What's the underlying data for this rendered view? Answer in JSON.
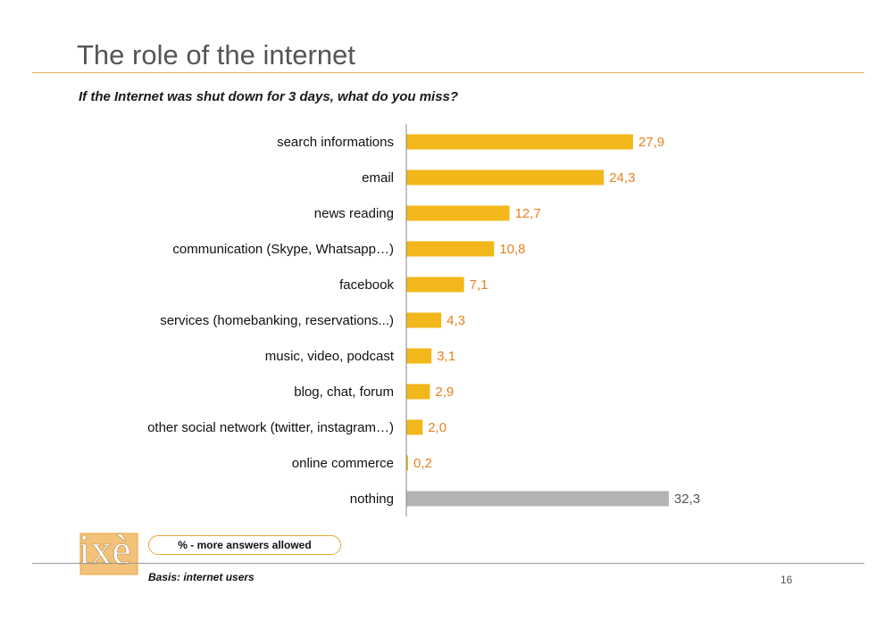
{
  "page": {
    "title": "The role of the internet",
    "subtitle": "If the Internet was shut down for 3 days, what do you miss?",
    "note": "% - more answers allowed",
    "basis": "Basis: internet users",
    "page_number": "16",
    "logo_text": "ixè"
  },
  "colors": {
    "highlight_bar": "#f2b71a",
    "baseline_bar": "#b3b3b3",
    "highlight_value": "#e6821e",
    "baseline_value": "#555555",
    "accent_rule": "#e2b35a"
  },
  "chart_data": {
    "type": "bar",
    "orientation": "horizontal",
    "title": "",
    "xlabel": "",
    "ylabel": "",
    "xlim": [
      0,
      33
    ],
    "grid": false,
    "categories": [
      "search informations",
      "email",
      "news reading",
      "communication (Skype, Whatsapp…)",
      "facebook",
      "services (homebanking, reservations...)",
      "music, video, podcast",
      "blog, chat, forum",
      "other social network (twitter, instagram…)",
      "online commerce",
      "nothing"
    ],
    "values": [
      27.9,
      24.3,
      12.7,
      10.8,
      7.1,
      4.3,
      3.1,
      2.9,
      2.0,
      0.2,
      32.3
    ],
    "value_labels": [
      "27,9",
      "24,3",
      "12,7",
      "10,8",
      "7,1",
      "4,3",
      "3,1",
      "2,9",
      "2,0",
      "0,2",
      "32,3"
    ],
    "bar_colors": [
      "highlight",
      "highlight",
      "highlight",
      "highlight",
      "highlight",
      "highlight",
      "highlight",
      "highlight",
      "highlight",
      "highlight",
      "baseline"
    ]
  }
}
